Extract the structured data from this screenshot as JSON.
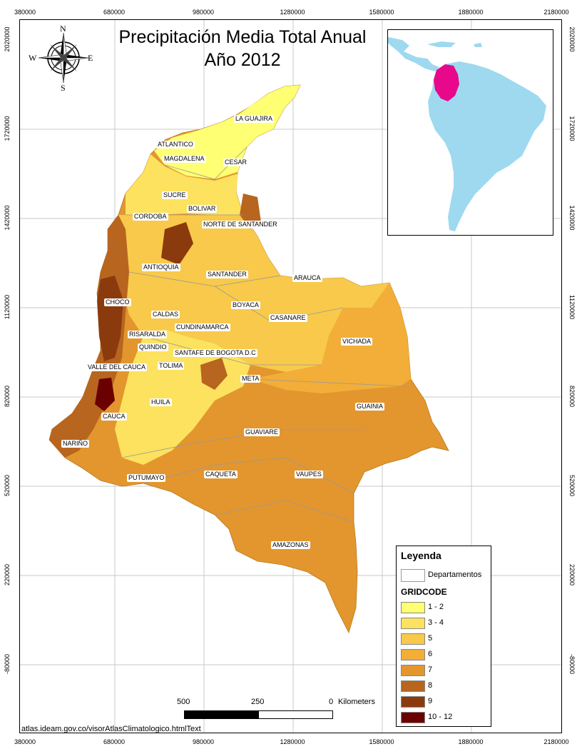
{
  "map": {
    "title_line1": "Precipitación Media Total Anual",
    "title_line2": "Año 2012",
    "top_ticks": [
      "380000",
      "680000",
      "980000",
      "1280000",
      "1580000",
      "1880000",
      "2180000"
    ],
    "bottom_ticks": [
      "380000",
      "680000",
      "980000",
      "1280000",
      "1580000",
      "1880000",
      "2180000"
    ],
    "left_ticks": [
      "2020000",
      "1720000",
      "1420000",
      "1120000",
      "820000",
      "520000",
      "220000",
      "-80000"
    ],
    "right_ticks": [
      "2020000",
      "1720000",
      "1420000",
      "1120000",
      "820000",
      "520000",
      "220000",
      "-80000"
    ],
    "compass": {
      "n": "N",
      "s": "S",
      "e": "E",
      "w": "W",
      "icon": "compass-rose-icon"
    },
    "departments": [
      "LA GUAJIRA",
      "ATLANTICO",
      "MAGDALENA",
      "CESAR",
      "SUCRE",
      "BOLIVAR",
      "CORDOBA",
      "NORTE DE SANTANDER",
      "ANTIOQUIA",
      "SANTANDER",
      "ARAUCA",
      "CHOCO",
      "BOYACA",
      "CALDAS",
      "CASANARE",
      "CUNDINAMARCA",
      "RISARALDA",
      "VICHADA",
      "QUINDIO",
      "SANTAFE DE BOGOTA D.C",
      "VALLE DEL CAUCA",
      "TOLIMA",
      "META",
      "HUILA",
      "GUAINIA",
      "CAUCA",
      "GUAVIARE",
      "NARIÑO",
      "PUTUMAYO",
      "CAQUETA",
      "VAUPES",
      "AMAZONAS"
    ]
  },
  "legend": {
    "title": "Leyenda",
    "departments_label": "Departamentos",
    "gridcode_title": "GRIDCODE",
    "items": [
      {
        "label": "1 - 2",
        "color": "#FFFF73"
      },
      {
        "label": "3 - 4",
        "color": "#FCE25E"
      },
      {
        "label": "5",
        "color": "#F8C94A"
      },
      {
        "label": "6",
        "color": "#F2AE38"
      },
      {
        "label": "7",
        "color": "#E3962E"
      },
      {
        "label": "8",
        "color": "#B8651F"
      },
      {
        "label": "9",
        "color": "#8B3A0E"
      },
      {
        "label": "10 - 12",
        "color": "#6B0000"
      }
    ]
  },
  "scale": {
    "l0": "500",
    "l1": "250",
    "l2": "0",
    "unit": "Kilometers"
  },
  "credit": "atlas.ideam.gov.co/visorAtlasClimatologico.htmlText",
  "inset": {
    "land_color": "#9ED9F0",
    "highlight_color": "#E8088C"
  }
}
